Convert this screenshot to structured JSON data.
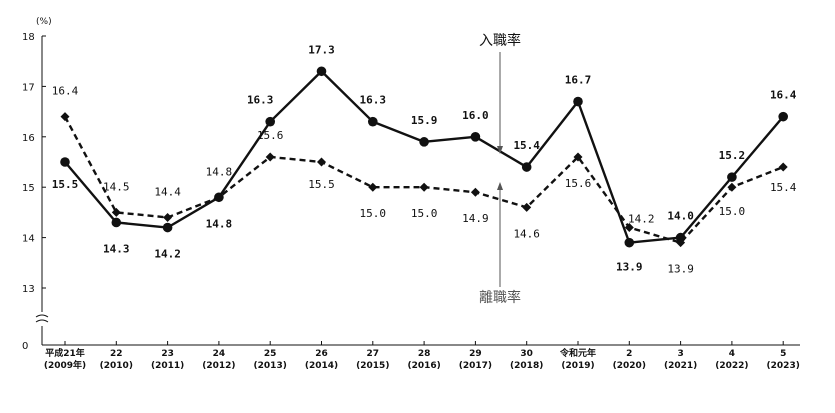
{
  "chart_data": {
    "type": "line",
    "unit_label": "(%)",
    "ylim": [
      12,
      18
    ],
    "y_ticks": [
      "18",
      "17",
      "16",
      "15",
      "14",
      "13"
    ],
    "y_zero_label": "0",
    "categories": [
      [
        "平成21年",
        "(2009年)"
      ],
      [
        "22",
        "(2010)"
      ],
      [
        "23",
        "(2011)"
      ],
      [
        "24",
        "(2012)"
      ],
      [
        "25",
        "(2013)"
      ],
      [
        "26",
        "(2014)"
      ],
      [
        "27",
        "(2015)"
      ],
      [
        "28",
        "(2016)"
      ],
      [
        "29",
        "(2017)"
      ],
      [
        "30",
        "(2018)"
      ],
      [
        "令和元年",
        "(2019)"
      ],
      [
        "2",
        "(2020)"
      ],
      [
        "3",
        "(2021)"
      ],
      [
        "4",
        "(2022)"
      ],
      [
        "5",
        "(2023)"
      ]
    ],
    "series": [
      {
        "name": "入職率",
        "style": "solid",
        "marker": "circle",
        "color": "#111111",
        "values": [
          15.5,
          14.3,
          14.2,
          14.8,
          16.3,
          17.3,
          16.3,
          15.9,
          16.0,
          15.4,
          16.7,
          13.9,
          14.0,
          15.2,
          16.4
        ],
        "labels": [
          "15.5",
          "14.3",
          "14.2",
          "14.8",
          "16.3",
          "17.3",
          "16.3",
          "15.9",
          "16.0",
          "15.4",
          "16.7",
          "13.9",
          "14.0",
          "15.2",
          "16.4"
        ]
      },
      {
        "name": "離職率",
        "style": "dashed",
        "marker": "diamond",
        "color": "#111111",
        "values": [
          16.4,
          14.5,
          14.4,
          14.8,
          15.6,
          15.5,
          15.0,
          15.0,
          14.9,
          14.6,
          15.6,
          14.2,
          13.9,
          15.0,
          15.4
        ],
        "labels": [
          "16.4",
          "14.5",
          "14.4",
          "14.8",
          "15.6",
          "15.5",
          "15.0",
          "15.0",
          "14.9",
          "14.6",
          "15.6",
          "14.2",
          "13.9",
          "15.0",
          "15.4"
        ]
      }
    ],
    "grid": false,
    "axis_break": true
  }
}
